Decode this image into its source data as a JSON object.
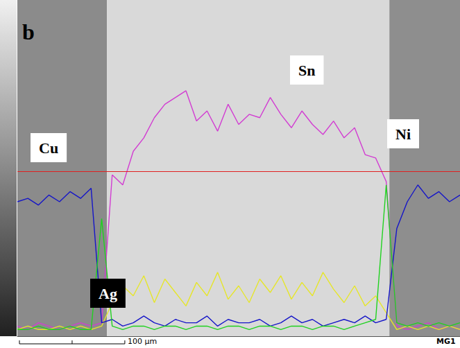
{
  "chart_data": {
    "type": "line",
    "panel_label": "b",
    "footer_text": "MG1",
    "scale_bar": {
      "label": "100 μm",
      "length": 100
    },
    "xlim": [
      0,
      420
    ],
    "ylim": [
      0,
      100
    ],
    "tick_labels": false,
    "grid": false,
    "regions": [
      {
        "x": [
          0,
          85
        ],
        "color": "#8b8b8b"
      },
      {
        "x": [
          85,
          353
        ],
        "color": "#d9d9d9"
      },
      {
        "x": [
          353,
          420
        ],
        "color": "#8e8e8e"
      }
    ],
    "reference_line": {
      "value": 49,
      "color": "#e02020"
    },
    "x": [
      0,
      10,
      20,
      30,
      40,
      50,
      60,
      70,
      80,
      90,
      100,
      110,
      120,
      130,
      140,
      150,
      160,
      170,
      180,
      190,
      200,
      210,
      220,
      230,
      240,
      250,
      260,
      270,
      280,
      290,
      300,
      310,
      320,
      330,
      340,
      350,
      360,
      370,
      380,
      390,
      400,
      410,
      420
    ],
    "series": [
      {
        "name": "Sn",
        "color": "#d23cd2",
        "values": [
          3,
          2,
          4,
          3,
          2,
          3,
          4,
          3,
          4,
          48,
          45,
          55,
          59,
          65,
          69,
          71,
          73,
          64,
          67,
          61,
          69,
          63,
          66,
          65,
          71,
          66,
          62,
          67,
          63,
          60,
          64,
          59,
          62,
          54,
          53,
          46,
          3,
          2,
          3,
          4,
          2,
          3,
          2
        ]
      },
      {
        "name": "Ag",
        "color": "#e6e62a",
        "values": [
          2,
          3,
          2,
          2,
          3,
          2,
          3,
          2,
          3,
          10,
          15,
          12,
          18,
          10,
          17,
          13,
          9,
          16,
          12,
          19,
          11,
          15,
          10,
          17,
          13,
          18,
          11,
          16,
          12,
          19,
          14,
          10,
          15,
          9,
          12,
          7,
          2,
          3,
          2,
          3,
          2,
          3,
          2
        ]
      },
      {
        "name": "Cu",
        "color": "#1515c8",
        "values": [
          40,
          41,
          39,
          42,
          40,
          43,
          41,
          44,
          4,
          5,
          3,
          4,
          6,
          4,
          3,
          5,
          4,
          4,
          6,
          3,
          5,
          4,
          4,
          5,
          3,
          4,
          6,
          4,
          5,
          3,
          4,
          5,
          4,
          6,
          4,
          5,
          32,
          40,
          45,
          41,
          43,
          40,
          42
        ]
      },
      {
        "name": "Ni",
        "color": "#1fd21f",
        "values": [
          2,
          2,
          3,
          2,
          2,
          3,
          2,
          2,
          35,
          3,
          2,
          3,
          3,
          2,
          3,
          3,
          2,
          3,
          3,
          2,
          3,
          3,
          2,
          3,
          3,
          2,
          3,
          3,
          2,
          3,
          3,
          2,
          3,
          4,
          5,
          45,
          4,
          3,
          4,
          3,
          4,
          3,
          4
        ]
      }
    ]
  }
}
